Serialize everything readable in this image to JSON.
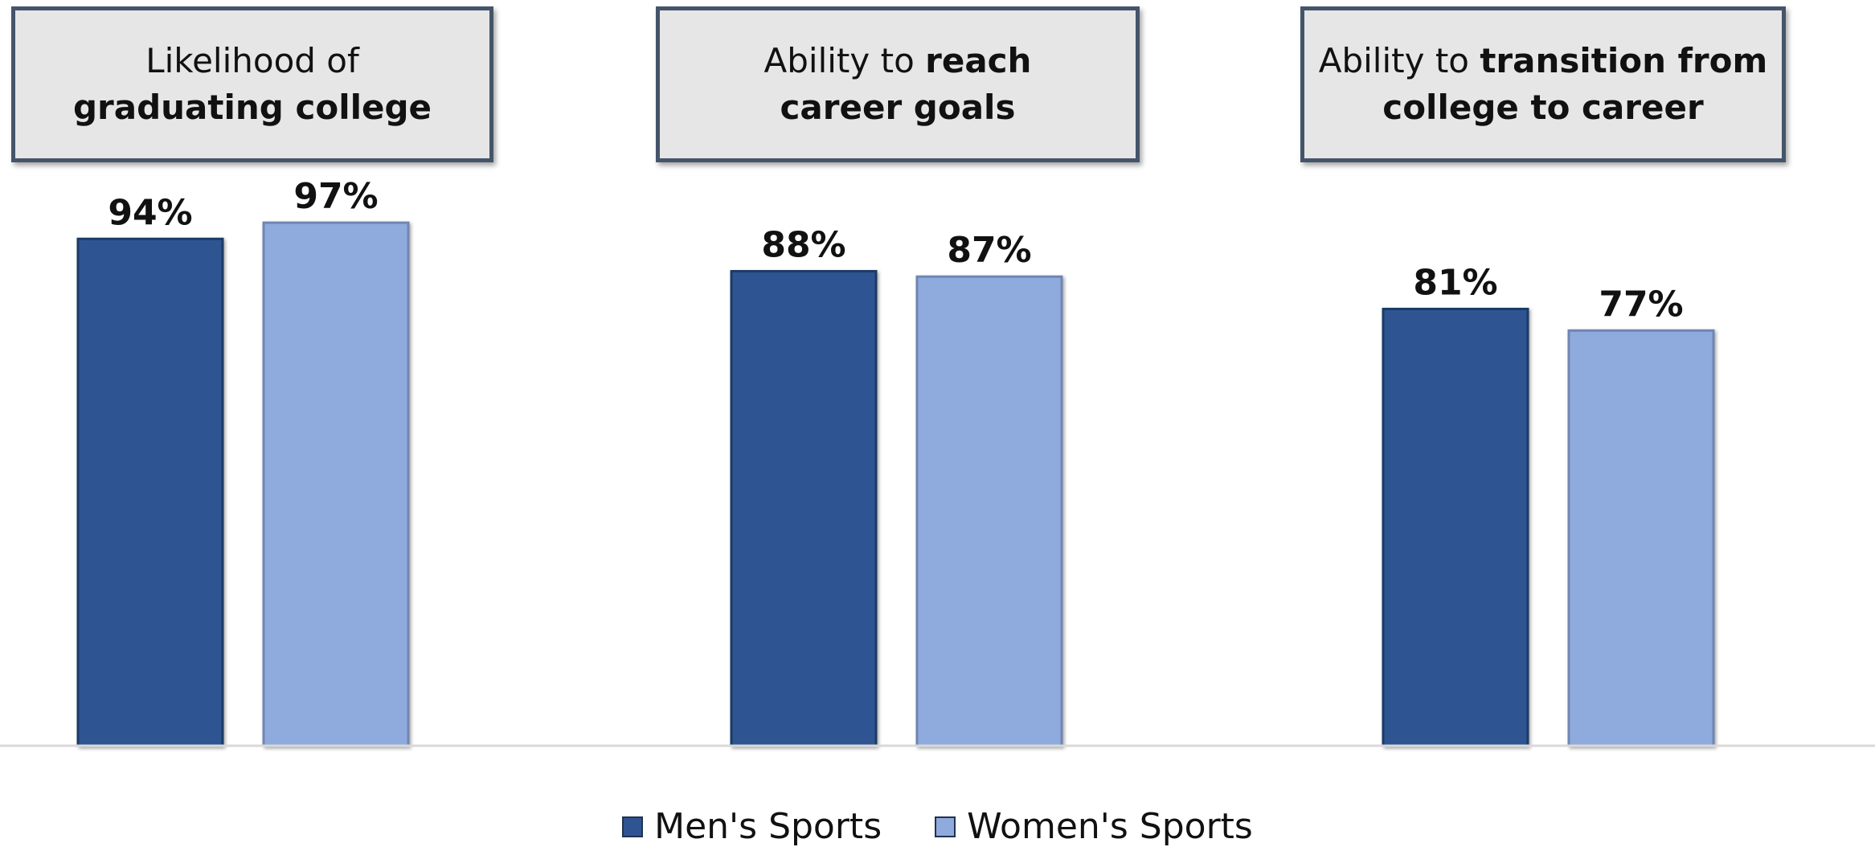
{
  "chart_data": {
    "type": "bar",
    "categories": [
      {
        "line1_prefix": "Likelihood of",
        "line1_bold": "",
        "line2_prefix": "",
        "line2_bold": "graduating college"
      },
      {
        "line1_prefix": "Ability to ",
        "line1_bold": "reach",
        "line2_prefix": "",
        "line2_bold": "career goals"
      },
      {
        "line1_prefix": "Ability to ",
        "line1_bold": "transition from",
        "line2_prefix": "",
        "line2_bold": "college to career"
      }
    ],
    "series": [
      {
        "name": "Men's Sports",
        "values": [
          94,
          88,
          81
        ],
        "labels": [
          "94%",
          "88%",
          "81%"
        ],
        "color": "#2e5492"
      },
      {
        "name": "Women's Sports",
        "values": [
          97,
          87,
          77
        ],
        "labels": [
          "97%",
          "87%",
          "77%"
        ],
        "color": "#8faadc"
      }
    ],
    "ylim": [
      0,
      100
    ],
    "grid": false,
    "legend": "bottom-center"
  }
}
